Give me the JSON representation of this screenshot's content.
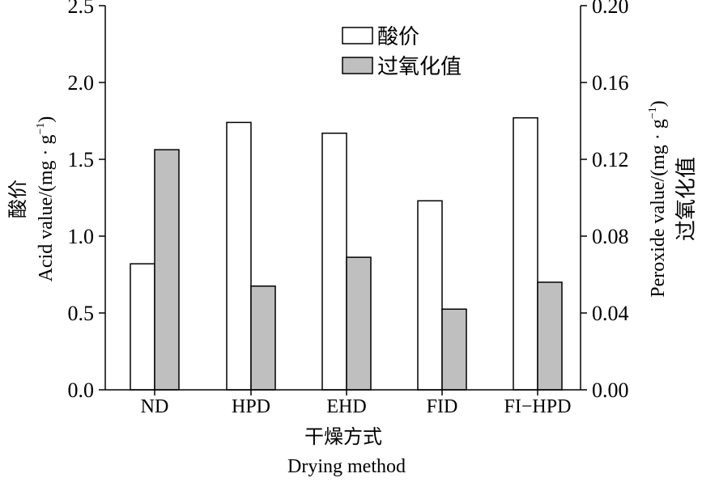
{
  "chart_data": {
    "type": "bar",
    "categories": [
      "ND",
      "HPD",
      "EHD",
      "FID",
      "FI−HPD"
    ],
    "series": [
      {
        "name": "酸价",
        "axis": "left",
        "color": "#ffffff",
        "values": [
          0.82,
          1.74,
          1.67,
          1.23,
          1.77
        ]
      },
      {
        "name": "过氧化值",
        "axis": "right",
        "color": "#bfbfbf",
        "values": [
          0.125,
          0.054,
          0.069,
          0.042,
          0.056
        ]
      }
    ],
    "xlabel_cn": "干燥方式",
    "xlabel": "Drying method",
    "ylabel_left_cn": "酸价",
    "ylabel_left": "Acid value/(mg · g",
    "ylabel_right_cn": "过氧化值",
    "ylabel_right": "Peroxide value/(mg · g",
    "unit_exp": "−1",
    "unit_close": ")",
    "ylim_left": [
      0,
      2.5
    ],
    "ylim_right": [
      0,
      0.2
    ],
    "left_ticks": [
      "0.0",
      "0.5",
      "1.0",
      "1.5",
      "2.0",
      "2.5"
    ],
    "right_ticks": [
      "0.00",
      "0.04",
      "0.08",
      "0.12",
      "0.16",
      "0.20"
    ],
    "legend_position": "top-center",
    "grid": false
  }
}
